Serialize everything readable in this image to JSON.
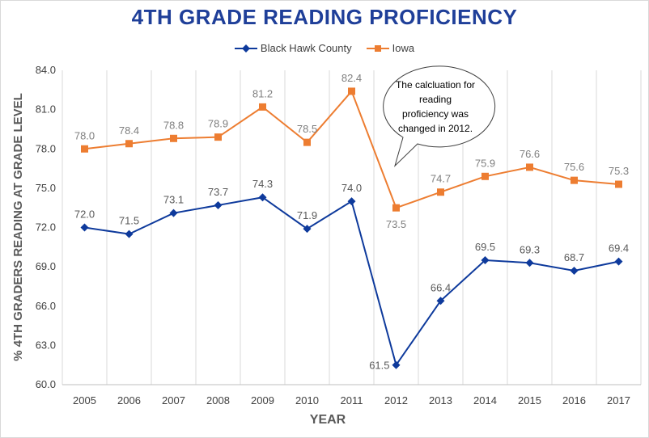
{
  "colors": {
    "title": "#1f3f99",
    "series_blue": "#0e3a9c",
    "series_orange": "#ed7d31",
    "grid": "#d9d9d9",
    "axis_text": "#404040",
    "label_blue": "#595959",
    "label_orange": "#7f7f7f"
  },
  "callout": {
    "text_lines": [
      "The calcluation for",
      "reading",
      "proficiency was",
      "changed in 2012."
    ]
  },
  "chart_data": {
    "type": "line",
    "title": "4TH GRADE READING PROFICIENCY",
    "xlabel": "YEAR",
    "ylabel": "% 4TH GRADERS READING AT GRADE LEVEL",
    "categories": [
      "2005",
      "2006",
      "2007",
      "2008",
      "2009",
      "2010",
      "2011",
      "2012",
      "2013",
      "2014",
      "2015",
      "2016",
      "2017"
    ],
    "ylim": [
      60,
      84
    ],
    "yticks": [
      "60.0",
      "63.0",
      "66.0",
      "69.0",
      "72.0",
      "75.0",
      "78.0",
      "81.0",
      "84.0"
    ],
    "grid": "vertical",
    "legend_position": "top",
    "series": [
      {
        "name": "Black Hawk County",
        "marker": "diamond",
        "values": [
          72.0,
          71.5,
          73.1,
          73.7,
          74.3,
          71.9,
          74.0,
          61.5,
          66.4,
          69.5,
          69.3,
          68.7,
          69.4
        ],
        "labels": [
          "72.0",
          "71.5",
          "73.1",
          "73.7",
          "74.3",
          "71.9",
          "74.0",
          "61.5",
          "66.4",
          "69.5",
          "69.3",
          "68.7",
          "69.4"
        ]
      },
      {
        "name": "Iowa",
        "marker": "square",
        "values": [
          78.0,
          78.4,
          78.8,
          78.9,
          81.2,
          78.5,
          82.4,
          73.5,
          74.7,
          75.9,
          76.6,
          75.6,
          75.3
        ],
        "labels": [
          "78.0",
          "78.4",
          "78.8",
          "78.9",
          "81.2",
          "78.5",
          "82.4",
          "73.5",
          "74.7",
          "75.9",
          "76.6",
          "75.6",
          "75.3"
        ]
      }
    ]
  }
}
